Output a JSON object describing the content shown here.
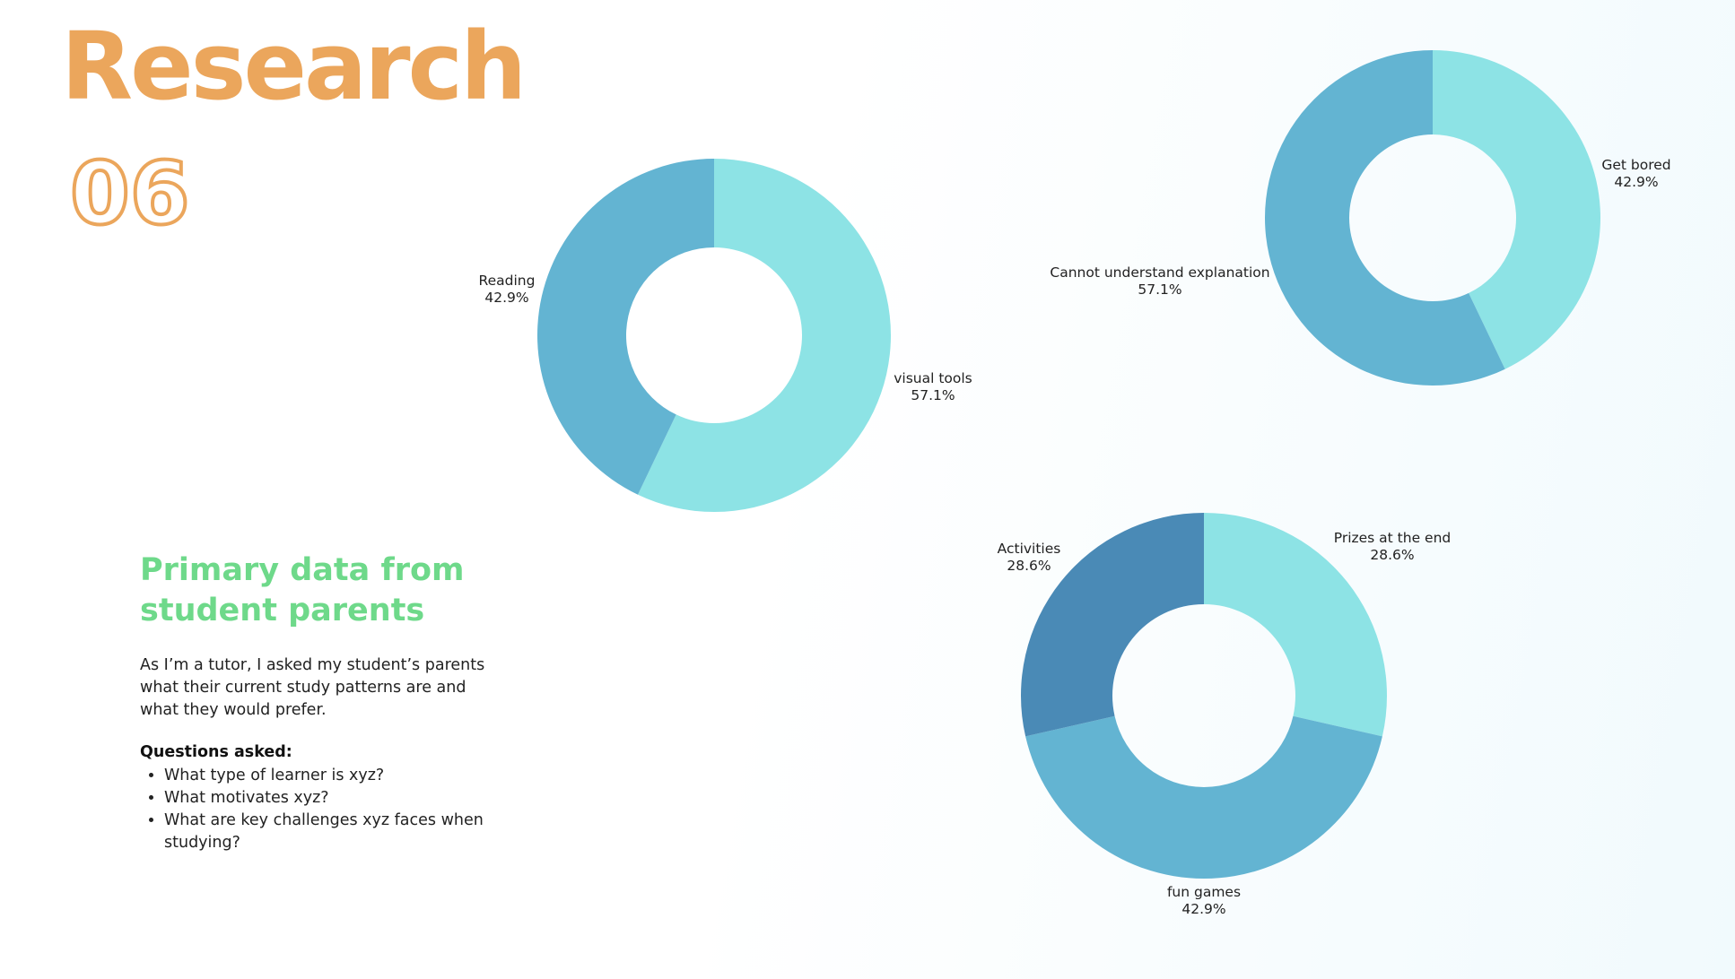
{
  "header": {
    "title": "Research",
    "number": "06"
  },
  "colors": {
    "title": "#eba65c",
    "subhead": "#6ed98a",
    "light": "#8de3e5",
    "medium": "#63b4d2",
    "dark": "#4a8ab6"
  },
  "intro": {
    "heading": "Primary data from student parents",
    "body": "As I’m a tutor, I asked my student’s parents what their current study patterns are and what they would prefer.",
    "questions_title": "Questions asked:",
    "questions": [
      "What type of learner is xyz?",
      "What motivates xyz?",
      "What are key challenges xyz faces when studying?"
    ]
  },
  "chart_data": [
    {
      "type": "pie",
      "title": "",
      "slices": [
        {
          "label": "visual tools",
          "value": 57.1,
          "display": "57.1%",
          "color": "#8de3e5"
        },
        {
          "label": "Reading",
          "value": 42.9,
          "display": "42.9%",
          "color": "#63b4d2"
        }
      ]
    },
    {
      "type": "pie",
      "title": "",
      "slices": [
        {
          "label": "Get bored",
          "value": 42.9,
          "display": "42.9%",
          "color": "#8de3e5"
        },
        {
          "label": "Cannot understand explanation",
          "value": 57.1,
          "display": "57.1%",
          "color": "#63b4d2"
        }
      ]
    },
    {
      "type": "pie",
      "title": "",
      "slices": [
        {
          "label": "Prizes at the end",
          "value": 28.6,
          "display": "28.6%",
          "color": "#8de3e5"
        },
        {
          "label": "fun games",
          "value": 42.9,
          "display": "42.9%",
          "color": "#63b4d2"
        },
        {
          "label": "Activities",
          "value": 28.6,
          "display": "28.6%",
          "color": "#4a8ab6"
        }
      ]
    }
  ]
}
